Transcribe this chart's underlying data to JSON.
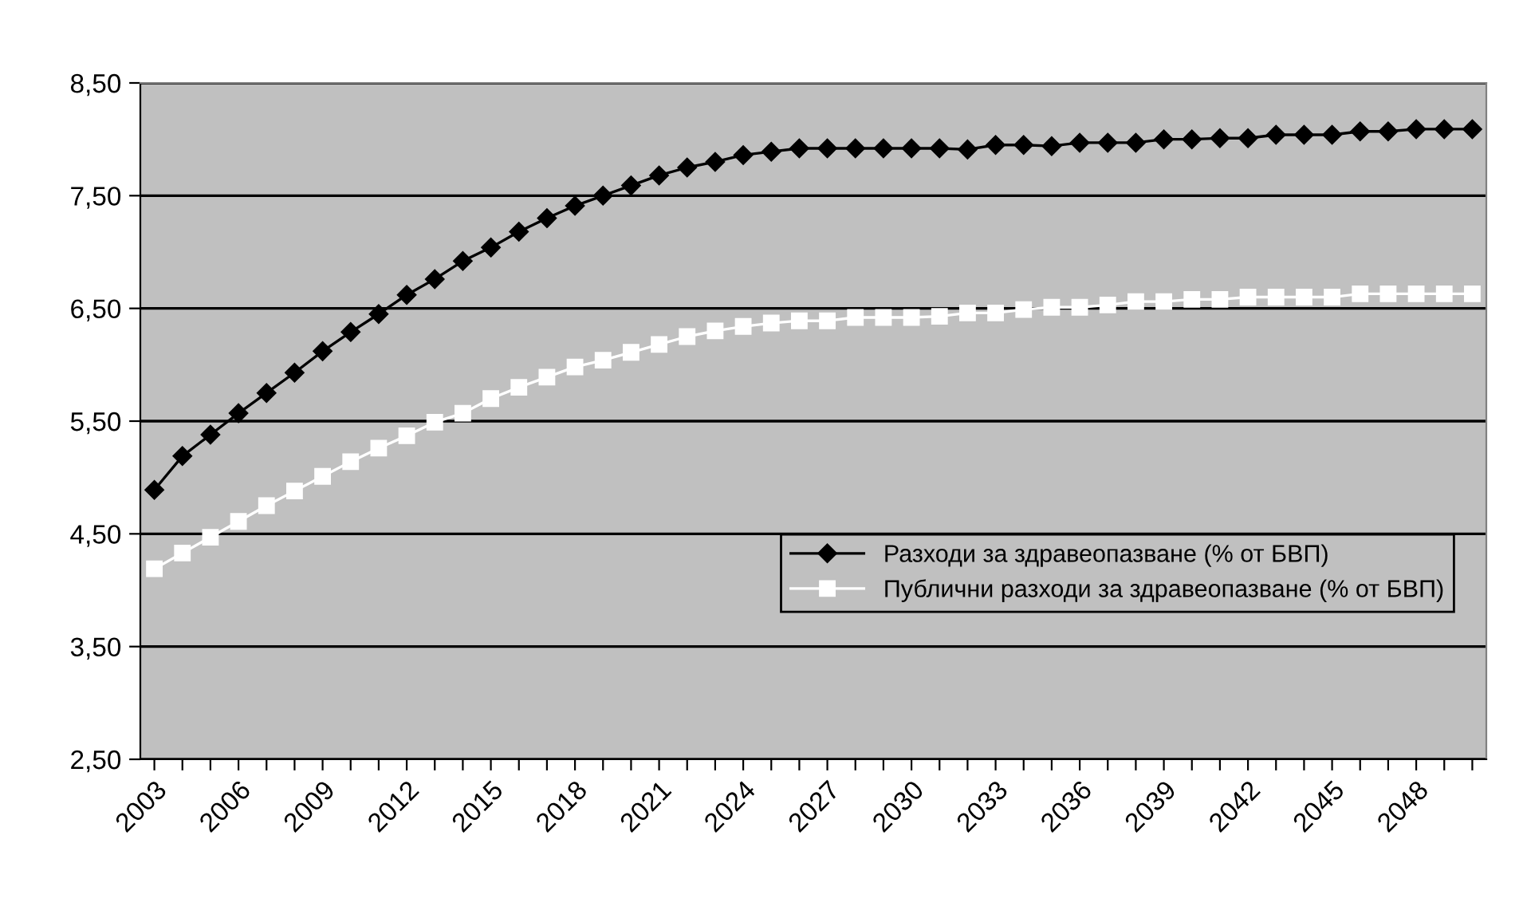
{
  "chart_data": {
    "type": "line",
    "categories": [
      "2003",
      null,
      null,
      "2006",
      null,
      null,
      "2009",
      null,
      null,
      "2012",
      null,
      null,
      "2015",
      null,
      null,
      "2018",
      null,
      null,
      "2021",
      null,
      null,
      "2024",
      null,
      null,
      "2027",
      null,
      null,
      "2030",
      null,
      null,
      "2033",
      null,
      null,
      "2036",
      null,
      null,
      "2039",
      null,
      null,
      "2042",
      null,
      null,
      "2045",
      null,
      null,
      "2048",
      null,
      null
    ],
    "series": [
      {
        "name": "Разходи за здравеопазване (% от БВП)",
        "color": "#000000",
        "marker": "diamond",
        "values": [
          4.89,
          5.19,
          5.38,
          5.57,
          5.75,
          5.93,
          6.12,
          6.29,
          6.45,
          6.62,
          6.76,
          6.92,
          7.04,
          7.18,
          7.3,
          7.41,
          7.5,
          7.59,
          7.68,
          7.75,
          7.8,
          7.86,
          7.89,
          7.92,
          7.92,
          7.92,
          7.92,
          7.92,
          7.92,
          7.91,
          7.95,
          7.95,
          7.94,
          7.97,
          7.97,
          7.97,
          8.0,
          8.0,
          8.01,
          8.01,
          8.04,
          8.04,
          8.04,
          8.07,
          8.07,
          8.09,
          8.09,
          8.09
        ]
      },
      {
        "name": "Публични разходи за здравеопазване (% от БВП)",
        "color": "#ffffff",
        "marker": "square",
        "values": [
          4.19,
          4.33,
          4.47,
          4.61,
          4.75,
          4.88,
          5.01,
          5.14,
          5.26,
          5.37,
          5.49,
          5.57,
          5.7,
          5.8,
          5.89,
          5.98,
          6.04,
          6.11,
          6.18,
          6.25,
          6.3,
          6.34,
          6.37,
          6.39,
          6.39,
          6.42,
          6.42,
          6.42,
          6.43,
          6.46,
          6.46,
          6.49,
          6.51,
          6.51,
          6.53,
          6.56,
          6.56,
          6.58,
          6.58,
          6.6,
          6.6,
          6.6,
          6.6,
          6.63,
          6.63,
          6.63,
          6.63,
          6.63
        ]
      }
    ],
    "ylim": [
      2.5,
      8.5
    ],
    "yticks": [
      {
        "value": 2.5,
        "label": "2,50"
      },
      {
        "value": 3.5,
        "label": "3,50"
      },
      {
        "value": 4.5,
        "label": "4,50"
      },
      {
        "value": 5.5,
        "label": "5,50"
      },
      {
        "value": 6.5,
        "label": "6,50"
      },
      {
        "value": 7.5,
        "label": "7,50"
      },
      {
        "value": 8.5,
        "label": "8,50"
      }
    ],
    "grid": "y",
    "legend": "bottom right"
  }
}
